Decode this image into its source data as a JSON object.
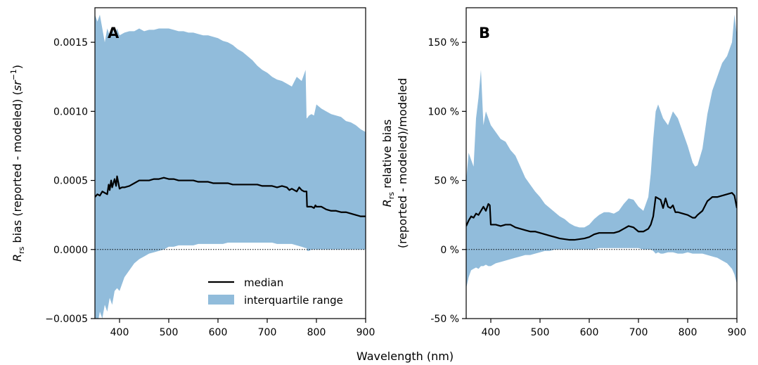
{
  "figure": {
    "xlabel": "Wavelength (nm)",
    "colors": {
      "iqr_fill": "#91bcdb",
      "median_line": "#000000",
      "zero_line": "#000000"
    }
  },
  "chart_data": [
    {
      "type": "area",
      "panel_label": "A",
      "ylabel": "R",
      "ylabel_sub": "rs",
      "ylabel_rest": " bias (reported - modeled) (",
      "ylabel_unit": "sr",
      "ylabel_unit_sup": "−1",
      "ylabel_close": ")",
      "xlim": [
        350,
        900
      ],
      "ylim": [
        -0.0005,
        0.00175
      ],
      "xticks": [
        400,
        500,
        600,
        700,
        800,
        900
      ],
      "yticks": [
        -0.0005,
        0.0,
        0.0005,
        0.001,
        0.0015
      ],
      "ytick_labels": [
        "−0.0005",
        "0.0000",
        "0.0005",
        "0.0010",
        "0.0015"
      ],
      "reference_line": 0,
      "legend": {
        "placement": "lower-center",
        "entries": [
          "median",
          "interquartile range"
        ]
      },
      "series": [
        {
          "name": "median",
          "x": [
            350,
            355,
            360,
            365,
            370,
            375,
            378,
            380,
            383,
            385,
            390,
            393,
            395,
            400,
            405,
            410,
            420,
            430,
            440,
            450,
            460,
            470,
            480,
            490,
            500,
            510,
            520,
            530,
            540,
            550,
            560,
            570,
            580,
            590,
            600,
            610,
            620,
            630,
            640,
            650,
            660,
            670,
            680,
            690,
            700,
            710,
            720,
            730,
            740,
            745,
            750,
            755,
            760,
            765,
            770,
            775,
            780,
            781,
            785,
            790,
            795,
            798,
            800,
            810,
            820,
            830,
            840,
            850,
            860,
            870,
            880,
            890,
            900
          ],
          "y": [
            0.00038,
            0.0004,
            0.00039,
            0.00042,
            0.00041,
            0.0004,
            0.00047,
            0.00043,
            0.0005,
            0.00045,
            0.00051,
            0.00046,
            0.00053,
            0.00044,
            0.00045,
            0.00045,
            0.00046,
            0.00048,
            0.0005,
            0.0005,
            0.0005,
            0.00051,
            0.00051,
            0.00052,
            0.00051,
            0.00051,
            0.0005,
            0.0005,
            0.0005,
            0.0005,
            0.00049,
            0.00049,
            0.00049,
            0.00048,
            0.00048,
            0.00048,
            0.00048,
            0.00047,
            0.00047,
            0.00047,
            0.00047,
            0.00047,
            0.00047,
            0.00046,
            0.00046,
            0.00046,
            0.00045,
            0.00046,
            0.00045,
            0.00043,
            0.00044,
            0.00043,
            0.00042,
            0.00045,
            0.00043,
            0.00042,
            0.00042,
            0.00031,
            0.00031,
            0.00031,
            0.0003,
            0.00032,
            0.00031,
            0.00031,
            0.00029,
            0.00028,
            0.00028,
            0.00027,
            0.00027,
            0.00026,
            0.00025,
            0.00024,
            0.00024
          ]
        },
        {
          "name": "interquartile range",
          "x": [
            350,
            355,
            360,
            365,
            370,
            375,
            380,
            385,
            390,
            395,
            400,
            410,
            420,
            430,
            440,
            450,
            460,
            470,
            480,
            490,
            500,
            510,
            520,
            530,
            540,
            550,
            560,
            570,
            580,
            590,
            600,
            610,
            620,
            630,
            640,
            650,
            660,
            670,
            680,
            690,
            700,
            710,
            720,
            730,
            740,
            750,
            760,
            770,
            778,
            780,
            781,
            785,
            790,
            795,
            800,
            810,
            820,
            830,
            840,
            850,
            860,
            870,
            880,
            890,
            900
          ],
          "lower": [
            -0.0005,
            -0.00055,
            -0.00045,
            -0.0005,
            -0.0004,
            -0.00045,
            -0.00035,
            -0.0004,
            -0.0003,
            -0.00028,
            -0.0003,
            -0.0002,
            -0.00015,
            -0.0001,
            -7e-05,
            -5e-05,
            -3e-05,
            -2e-05,
            -1e-05,
            0.0,
            2e-05,
            2e-05,
            3e-05,
            3e-05,
            3e-05,
            3e-05,
            4e-05,
            4e-05,
            4e-05,
            4e-05,
            4e-05,
            4e-05,
            5e-05,
            5e-05,
            5e-05,
            5e-05,
            5e-05,
            5e-05,
            5e-05,
            5e-05,
            5e-05,
            5e-05,
            4e-05,
            4e-05,
            4e-05,
            4e-05,
            3e-05,
            2e-05,
            1e-05,
            1e-05,
            -1e-05,
            -1e-05,
            0.0,
            0.0,
            0.0,
            0.0,
            0.0,
            0.0,
            0.0,
            0.0,
            0.0,
            0.0,
            0.0,
            0.0,
            0.0
          ],
          "upper": [
            0.0017,
            0.00165,
            0.0017,
            0.0016,
            0.0015,
            0.0016,
            0.00155,
            0.0016,
            0.00155,
            0.0016,
            0.00155,
            0.00157,
            0.00158,
            0.00158,
            0.0016,
            0.00158,
            0.00159,
            0.00159,
            0.0016,
            0.0016,
            0.0016,
            0.00159,
            0.00158,
            0.00158,
            0.00157,
            0.00157,
            0.00156,
            0.00155,
            0.00155,
            0.00154,
            0.00153,
            0.00151,
            0.0015,
            0.00148,
            0.00145,
            0.00143,
            0.0014,
            0.00137,
            0.00133,
            0.0013,
            0.00128,
            0.00125,
            0.00123,
            0.00122,
            0.0012,
            0.00118,
            0.00125,
            0.00122,
            0.0013,
            0.00095,
            0.00095,
            0.00097,
            0.00098,
            0.00097,
            0.00105,
            0.00102,
            0.001,
            0.00098,
            0.00097,
            0.00096,
            0.00093,
            0.00092,
            0.0009,
            0.00087,
            0.00085
          ]
        }
      ]
    },
    {
      "type": "area",
      "panel_label": "B",
      "ylabel_line1_prefix": "R",
      "ylabel_line1_sub": "rs",
      "ylabel_line1_rest": " relative bias",
      "ylabel_line2": "(reported - modeled)/modeled",
      "xlim": [
        350,
        900
      ],
      "ylim": [
        -50,
        175
      ],
      "xticks": [
        400,
        500,
        600,
        700,
        800,
        900
      ],
      "yticks": [
        -50,
        0,
        50,
        100,
        150
      ],
      "ytick_labels": [
        "-50 %",
        "0 %",
        "50 %",
        "100 %",
        "150 %"
      ],
      "reference_line": 0,
      "series": [
        {
          "name": "median",
          "x": [
            350,
            355,
            360,
            365,
            370,
            375,
            380,
            385,
            390,
            395,
            398,
            400,
            410,
            420,
            430,
            440,
            450,
            460,
            470,
            480,
            490,
            500,
            510,
            520,
            530,
            540,
            550,
            560,
            570,
            580,
            590,
            600,
            610,
            620,
            630,
            640,
            650,
            660,
            670,
            680,
            690,
            700,
            710,
            720,
            725,
            730,
            735,
            740,
            745,
            750,
            755,
            760,
            765,
            770,
            775,
            780,
            790,
            800,
            810,
            815,
            820,
            830,
            840,
            850,
            860,
            870,
            880,
            890,
            895,
            900
          ],
          "y": [
            17,
            21,
            24,
            23,
            26,
            25,
            28,
            31,
            28,
            33,
            32,
            18,
            18,
            17,
            18,
            18,
            16,
            15,
            14,
            13,
            13,
            12,
            11,
            10,
            9,
            8,
            7.5,
            7,
            7,
            7.5,
            8,
            9,
            11,
            12,
            12,
            12,
            12,
            13,
            15,
            17,
            16,
            13,
            13,
            15,
            18,
            24,
            38,
            37,
            36,
            30,
            37,
            31,
            30,
            32,
            27,
            27,
            26,
            25,
            23,
            23,
            25,
            28,
            35,
            38,
            38,
            39,
            40,
            41,
            39,
            30
          ]
        },
        {
          "name": "interquartile range",
          "x": [
            350,
            355,
            360,
            365,
            370,
            375,
            380,
            385,
            390,
            395,
            400,
            410,
            420,
            430,
            440,
            450,
            460,
            470,
            480,
            490,
            500,
            510,
            520,
            530,
            540,
            550,
            560,
            570,
            580,
            590,
            600,
            610,
            620,
            630,
            640,
            650,
            660,
            670,
            680,
            690,
            700,
            710,
            720,
            725,
            730,
            735,
            740,
            745,
            750,
            760,
            770,
            780,
            790,
            800,
            810,
            815,
            820,
            830,
            840,
            850,
            860,
            870,
            880,
            890,
            895,
            900
          ],
          "lower": [
            -28,
            -20,
            -15,
            -14,
            -13,
            -14,
            -12,
            -12,
            -11,
            -12,
            -12,
            -10,
            -9,
            -8,
            -7,
            -6,
            -5,
            -4,
            -4,
            -3,
            -2,
            -1,
            -1,
            0,
            0,
            0,
            0,
            0,
            0,
            0,
            0,
            0,
            1,
            1,
            1,
            1,
            1,
            1,
            1,
            1,
            1,
            0,
            0,
            0,
            -1,
            -3,
            -2,
            -3,
            -3,
            -2,
            -2,
            -3,
            -3,
            -2,
            -3,
            -3,
            -3,
            -3,
            -4,
            -5,
            -6,
            -8,
            -10,
            -14,
            -18,
            -25
          ],
          "upper": [
            50,
            70,
            65,
            60,
            95,
            110,
            130,
            90,
            100,
            95,
            90,
            85,
            80,
            78,
            72,
            68,
            60,
            52,
            47,
            42,
            38,
            33,
            30,
            27,
            24,
            22,
            19,
            17,
            16,
            16,
            18,
            22,
            25,
            27,
            27,
            26,
            28,
            33,
            37,
            36,
            31,
            28,
            38,
            55,
            80,
            100,
            105,
            100,
            95,
            90,
            100,
            95,
            85,
            75,
            63,
            60,
            61,
            73,
            98,
            115,
            125,
            135,
            140,
            150,
            170,
            155
          ]
        }
      ]
    }
  ]
}
